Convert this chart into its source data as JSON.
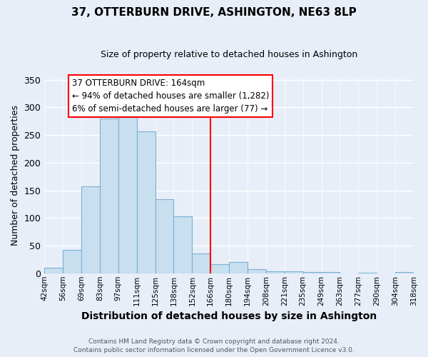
{
  "title": "37, OTTERBURN DRIVE, ASHINGTON, NE63 8LP",
  "subtitle": "Size of property relative to detached houses in Ashington",
  "xlabel": "Distribution of detached houses by size in Ashington",
  "ylabel": "Number of detached properties",
  "bar_color": "#c8dff0",
  "bar_edge_color": "#7ab0d4",
  "background_color": "#e8eef8",
  "grid_color": "white",
  "bin_labels": [
    "42sqm",
    "56sqm",
    "69sqm",
    "83sqm",
    "97sqm",
    "111sqm",
    "125sqm",
    "138sqm",
    "152sqm",
    "166sqm",
    "180sqm",
    "194sqm",
    "208sqm",
    "221sqm",
    "235sqm",
    "249sqm",
    "263sqm",
    "277sqm",
    "290sqm",
    "304sqm",
    "318sqm"
  ],
  "bar_values": [
    10,
    42,
    157,
    280,
    283,
    257,
    134,
    103,
    36,
    17,
    20,
    7,
    3,
    3,
    2,
    2,
    0,
    1,
    0,
    2
  ],
  "vline_position": 9,
  "vline_color": "red",
  "ylim": [
    0,
    355
  ],
  "yticks": [
    0,
    50,
    100,
    150,
    200,
    250,
    300,
    350
  ],
  "annotation_title": "37 OTTERBURN DRIVE: 164sqm",
  "annotation_line1": "← 94% of detached houses are smaller (1,282)",
  "annotation_line2": "6% of semi-detached houses are larger (77) →",
  "footer_line1": "Contains HM Land Registry data © Crown copyright and database right 2024.",
  "footer_line2": "Contains public sector information licensed under the Open Government Licence v3.0."
}
